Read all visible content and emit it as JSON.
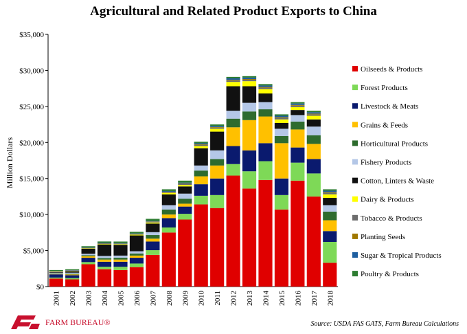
{
  "chart_data": {
    "type": "bar",
    "stacked": true,
    "title": "Agricultural and Related Product Exports to China",
    "ylabel": "Million Dollars",
    "xlabel": "",
    "ylim": [
      0,
      35000
    ],
    "yticks": [
      "$0",
      "$5,000",
      "$10,000",
      "$15,000",
      "$20,000",
      "$25,000",
      "$30,000",
      "$35,000"
    ],
    "grid": false,
    "legend_position": "right",
    "categories": [
      "2001",
      "2002",
      "2003",
      "2004",
      "2005",
      "2006",
      "2007",
      "2008",
      "2009",
      "2010",
      "2011",
      "2012",
      "2013",
      "2014",
      "2015",
      "2016",
      "2017",
      "2018"
    ],
    "series": [
      {
        "name": "Oilseeds & Products",
        "color": "#e00000",
        "values": [
          1100,
          1000,
          3100,
          2400,
          2300,
          2700,
          4400,
          7500,
          9300,
          11400,
          10900,
          15400,
          13600,
          14800,
          10700,
          14700,
          12500,
          3300
        ]
      },
      {
        "name": "Forest Products",
        "color": "#7ed957",
        "values": [
          150,
          180,
          300,
          350,
          450,
          500,
          650,
          700,
          800,
          1200,
          1800,
          1600,
          2400,
          2600,
          2000,
          2500,
          3200,
          2900
        ]
      },
      {
        "name": "Livestock & Meats",
        "color": "#0a1a6e",
        "values": [
          450,
          400,
          600,
          700,
          700,
          800,
          1200,
          1300,
          1000,
          1600,
          2300,
          2500,
          2900,
          2500,
          2300,
          2100,
          2000,
          1500
        ]
      },
      {
        "name": "Grains & Feeds",
        "color": "#ffc000",
        "values": [
          50,
          100,
          200,
          300,
          300,
          300,
          400,
          500,
          400,
          1100,
          1800,
          2600,
          4200,
          3700,
          4900,
          2500,
          2100,
          1500
        ]
      },
      {
        "name": "Horticultural Products",
        "color": "#2e6b2e",
        "values": [
          80,
          100,
          150,
          200,
          250,
          300,
          500,
          700,
          700,
          800,
          900,
          1200,
          1200,
          1000,
          1000,
          1100,
          1200,
          1200
        ]
      },
      {
        "name": "Fishery Products",
        "color": "#b4c7e7",
        "values": [
          100,
          150,
          200,
          300,
          300,
          300,
          400,
          600,
          700,
          700,
          1200,
          1100,
          1200,
          1000,
          1000,
          900,
          1200,
          900
        ]
      },
      {
        "name": "Cotton, Linters & Waste",
        "color": "#111111",
        "values": [
          100,
          200,
          700,
          1600,
          1500,
          2200,
          1200,
          1500,
          1000,
          2400,
          2600,
          3400,
          2300,
          1200,
          800,
          700,
          1000,
          1000
        ]
      },
      {
        "name": "Dairy & Products",
        "color": "#ffff00",
        "values": [
          50,
          50,
          50,
          60,
          80,
          100,
          150,
          200,
          200,
          300,
          400,
          600,
          700,
          600,
          500,
          400,
          500,
          500
        ]
      },
      {
        "name": "Tobacco & Products",
        "color": "#6d6d6d",
        "values": [
          50,
          50,
          50,
          60,
          60,
          70,
          80,
          100,
          150,
          150,
          150,
          200,
          200,
          200,
          200,
          200,
          200,
          200
        ]
      },
      {
        "name": "Planting Seeds",
        "color": "#a07800",
        "values": [
          20,
          20,
          30,
          30,
          30,
          40,
          50,
          60,
          60,
          80,
          80,
          100,
          100,
          100,
          100,
          100,
          100,
          100
        ]
      },
      {
        "name": "Sugar & Tropical Products",
        "color": "#1f5fa0",
        "values": [
          40,
          40,
          50,
          60,
          60,
          70,
          80,
          100,
          120,
          150,
          150,
          200,
          200,
          200,
          200,
          200,
          200,
          200
        ]
      },
      {
        "name": "Poultry & Products",
        "color": "#2e7d32",
        "values": [
          110,
          110,
          170,
          200,
          220,
          220,
          290,
          240,
          270,
          220,
          220,
          200,
          200,
          200,
          200,
          200,
          200,
          200
        ]
      }
    ]
  },
  "footer": {
    "logo_text": "FARM BUREAU®",
    "source": "Source: USDA FAS GATS, Farm Bureau Calculations"
  }
}
